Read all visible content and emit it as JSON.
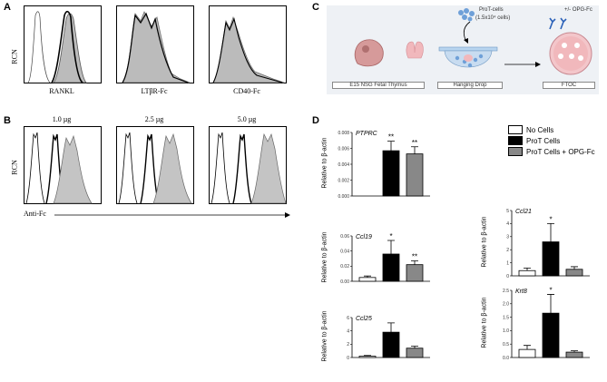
{
  "panels": {
    "a": "A",
    "b": "B",
    "c": "C",
    "d": "D"
  },
  "panel_a": {
    "y_label": "RCN",
    "captions": [
      "RANKL",
      "LTβR-Fc",
      "CD40-Fc"
    ]
  },
  "panel_b": {
    "y_label": "RCN",
    "titles": [
      "1.0 µg",
      "2.5 µg",
      "5.0 µg"
    ],
    "x_label": "Anti-Fc"
  },
  "panel_c": {
    "prot_label": "ProT-cells",
    "prot_count": "(1.5x10⁴ cells)",
    "opg_label": "+/- OPG-Fc",
    "steps": [
      "E15 NSG Fetal Thymus",
      "Hanging Drop",
      "FTOC"
    ]
  },
  "panel_d": {
    "legend": [
      {
        "label": "No Cells",
        "color": "#ffffff"
      },
      {
        "label": "ProT Cells",
        "color": "#000000"
      },
      {
        "label": "ProT Cells + OPG-Fc",
        "color": "#888888"
      }
    ],
    "y_label": "Relative to β-actin"
  },
  "chart_data": [
    {
      "type": "bar",
      "title": "PTPRC",
      "categories": [
        "No Cells",
        "ProT Cells",
        "ProT Cells + OPG-Fc"
      ],
      "values": [
        0,
        0.0057,
        0.0053
      ],
      "errors": [
        0,
        0.0012,
        0.0009
      ],
      "ylim": [
        0,
        0.008
      ],
      "yticks": [
        "0.000",
        "0.002",
        "0.004",
        "0.006",
        "0.008"
      ],
      "stars": [
        "",
        "**",
        "**"
      ]
    },
    {
      "type": "bar",
      "title": "Ccl19",
      "categories": [
        "No Cells",
        "ProT Cells",
        "ProT Cells + OPG-Fc"
      ],
      "values": [
        0.005,
        0.036,
        0.022
      ],
      "errors": [
        0.002,
        0.018,
        0.005
      ],
      "ylim": [
        0,
        0.06
      ],
      "yticks": [
        "0.00",
        "0.02",
        "0.04",
        "0.06"
      ],
      "stars": [
        "",
        "*",
        "**"
      ]
    },
    {
      "type": "bar",
      "title": "Ccl21",
      "categories": [
        "No Cells",
        "ProT Cells",
        "ProT Cells + OPG-Fc"
      ],
      "values": [
        0.4,
        2.6,
        0.5
      ],
      "errors": [
        0.2,
        1.4,
        0.2
      ],
      "ylim": [
        0,
        5
      ],
      "yticks": [
        "0",
        "1",
        "2",
        "3",
        "4",
        "5"
      ],
      "stars": [
        "",
        "*",
        ""
      ]
    },
    {
      "type": "bar",
      "title": "Ccl25",
      "categories": [
        "No Cells",
        "ProT Cells",
        "ProT Cells + OPG-Fc"
      ],
      "values": [
        0.2,
        3.8,
        1.4
      ],
      "errors": [
        0.1,
        1.4,
        0.3
      ],
      "ylim": [
        0,
        6
      ],
      "yticks": [
        "0",
        "2",
        "4",
        "6"
      ],
      "stars": [
        "",
        "",
        ""
      ]
    },
    {
      "type": "bar",
      "title": "Krt8",
      "categories": [
        "No Cells",
        "ProT Cells",
        "ProT Cells + OPG-Fc"
      ],
      "values": [
        0.3,
        1.65,
        0.2
      ],
      "errors": [
        0.15,
        0.7,
        0.05
      ],
      "ylim": [
        0,
        2.5
      ],
      "yticks": [
        "0.0",
        "0.5",
        "1.0",
        "1.5",
        "2.0",
        "2.5"
      ],
      "stars": [
        "",
        "*",
        ""
      ]
    }
  ]
}
